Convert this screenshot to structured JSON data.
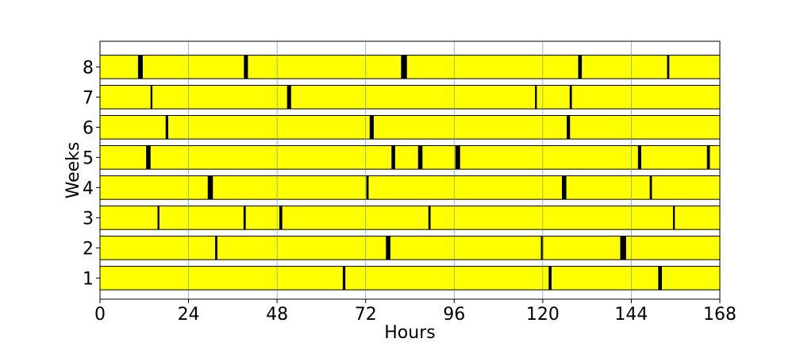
{
  "chart_data": {
    "type": "broken_barh",
    "title": "",
    "xlabel": "Hours",
    "ylabel": "Weeks",
    "xlim": [
      0,
      168
    ],
    "ylim": [
      0.3,
      8.85
    ],
    "xticks": [
      0,
      24,
      48,
      72,
      96,
      120,
      144,
      168
    ],
    "xtick_labels": [
      "0",
      "24",
      "48",
      "72",
      "96",
      "120",
      "144",
      "168"
    ],
    "yticks": [
      1,
      2,
      3,
      4,
      5,
      6,
      7,
      8
    ],
    "ytick_labels": [
      "1",
      "2",
      "3",
      "4",
      "5",
      "6",
      "7",
      "8"
    ],
    "grid": "vertical",
    "colors": {
      "bar": "#ffff00",
      "gap": "#000000",
      "grid": "#5b8db8"
    },
    "weeks": [
      {
        "week": 1,
        "gaps": [
          [
            65.8,
            66.5
          ],
          [
            121.6,
            122.4
          ],
          [
            151.3,
            152.3
          ]
        ]
      },
      {
        "week": 2,
        "gaps": [
          [
            31.2,
            31.8
          ],
          [
            77.5,
            78.7
          ],
          [
            119.5,
            120.1
          ],
          [
            141.0,
            142.6
          ]
        ]
      },
      {
        "week": 3,
        "gaps": [
          [
            15.6,
            16.1
          ],
          [
            38.9,
            39.5
          ],
          [
            48.6,
            49.4
          ],
          [
            89.0,
            89.6
          ],
          [
            155.3,
            155.8
          ]
        ]
      },
      {
        "week": 4,
        "gaps": [
          [
            29.2,
            30.6
          ],
          [
            72.2,
            72.8
          ],
          [
            125.2,
            126.4
          ],
          [
            149.0,
            149.6
          ]
        ]
      },
      {
        "week": 5,
        "gaps": [
          [
            12.5,
            13.7
          ],
          [
            79.0,
            80.0
          ],
          [
            86.2,
            87.4
          ],
          [
            96.3,
            97.6
          ],
          [
            145.8,
            146.7
          ],
          [
            164.5,
            165.3
          ]
        ]
      },
      {
        "week": 6,
        "gaps": [
          [
            17.8,
            18.5
          ],
          [
            73.1,
            74.2
          ],
          [
            126.5,
            127.4
          ]
        ]
      },
      {
        "week": 7,
        "gaps": [
          [
            13.7,
            14.2
          ],
          [
            50.7,
            51.8
          ],
          [
            117.9,
            118.4
          ],
          [
            127.3,
            127.9
          ]
        ]
      },
      {
        "week": 8,
        "gaps": [
          [
            10.3,
            11.6
          ],
          [
            39.0,
            40.1
          ],
          [
            81.6,
            83.2
          ],
          [
            129.6,
            130.6
          ],
          [
            153.7,
            154.3
          ]
        ]
      }
    ]
  }
}
